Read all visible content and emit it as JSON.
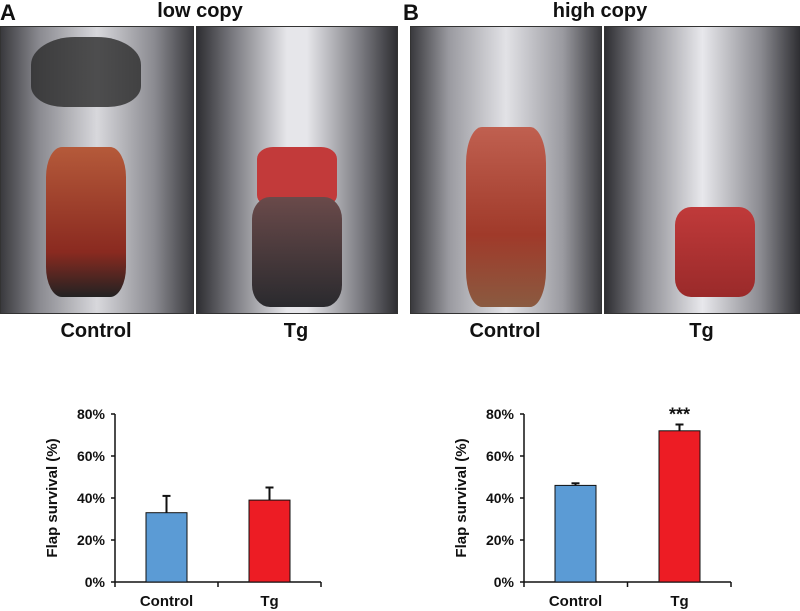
{
  "panels": [
    {
      "letter": "A",
      "title": "low copy",
      "photo_labels": [
        "Control",
        "Tg"
      ]
    },
    {
      "letter": "B",
      "title": "high copy",
      "photo_labels": [
        "Control",
        "Tg"
      ]
    }
  ],
  "chart_data": [
    {
      "type": "bar",
      "panel": "A",
      "categories": [
        "Control",
        "Tg"
      ],
      "values": [
        33,
        39
      ],
      "error_upper": [
        41,
        45
      ],
      "colors": [
        "#5b9bd5",
        "#ed1c24"
      ],
      "ylabel": "Flap survival (%)",
      "ylim": [
        0,
        80
      ],
      "yticks": [
        "0%",
        "20%",
        "40%",
        "60%",
        "80%"
      ],
      "annotations": [
        "",
        ""
      ]
    },
    {
      "type": "bar",
      "panel": "B",
      "categories": [
        "Control",
        "Tg"
      ],
      "values": [
        46,
        72
      ],
      "error_upper": [
        47,
        75
      ],
      "colors": [
        "#5b9bd5",
        "#ed1c24"
      ],
      "ylabel": "Flap survival (%)",
      "ylim": [
        0,
        80
      ],
      "yticks": [
        "0%",
        "20%",
        "40%",
        "60%",
        "80%"
      ],
      "annotations": [
        "",
        "***"
      ]
    }
  ]
}
